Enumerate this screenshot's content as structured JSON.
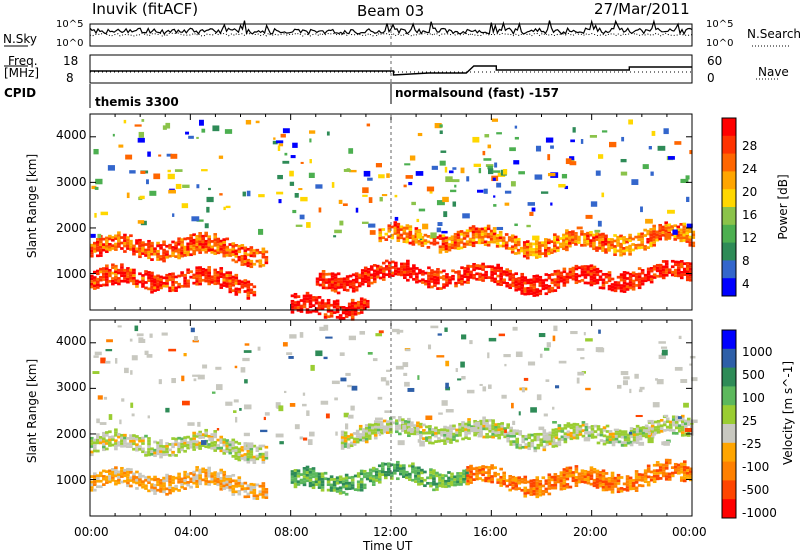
{
  "header": {
    "station": "Inuvik (fitACF)",
    "beam": "Beam 03",
    "date": "27/Mar/2011"
  },
  "panels": {
    "nsky_label": "N.Sky",
    "nsky_ticks": [
      "10^5",
      "10^0"
    ],
    "nsearch_label": "N.Search",
    "nsearch_ticks": [
      "10^5",
      "10^0"
    ],
    "freq_label": "Freq.",
    "freq_unit": "[MHz]",
    "freq_ticks": [
      "18",
      "8"
    ],
    "nave_label": "Nave",
    "nave_ticks": [
      "60",
      "0"
    ],
    "cpid_label": "CPID",
    "cpid_segments": [
      "themis 3300",
      "normalsound (fast) -157"
    ]
  },
  "colors": {
    "background": "#ffffff",
    "power_scale": [
      "#0000ff",
      "#3366cc",
      "#2e8b57",
      "#4caf50",
      "#8bc34a",
      "#ffd700",
      "#ffa500",
      "#ff6600",
      "#ff3300",
      "#ff0000"
    ],
    "velocity_scale": [
      "#0000ff",
      "#2e5fa8",
      "#2e8b57",
      "#5cb85c",
      "#9acd32",
      "#c8c8c0",
      "#ffa500",
      "#ff8000",
      "#ff4500",
      "#ff0000"
    ]
  },
  "chart_data": [
    {
      "type": "heatmap",
      "title": "",
      "xlabel": "Time UT",
      "ylabel": "Slant Range [km]",
      "x_ticks": [
        "00:00",
        "04:00",
        "08:00",
        "12:00",
        "16:00",
        "20:00",
        "00:00"
      ],
      "y_ticks": [
        "1000",
        "2000",
        "3000",
        "4000"
      ],
      "ylim": [
        200,
        4500
      ],
      "colorbar_label": "Power [dB]",
      "colorbar_ticks": [
        "28",
        "24",
        "20",
        "16",
        "12",
        "8",
        "4"
      ],
      "colorbar_range": [
        0,
        30
      ],
      "bands": [
        {
          "t0": 0.0,
          "t1": 6.5,
          "range": 800,
          "value": 26
        },
        {
          "t0": 0.0,
          "t1": 7.0,
          "range": 1500,
          "value": 24
        },
        {
          "t0": 9.0,
          "t1": 24.0,
          "range": 900,
          "value": 28
        },
        {
          "t0": 11.5,
          "t1": 24.0,
          "range": 1700,
          "value": 22
        },
        {
          "t0": 8.0,
          "t1": 11.0,
          "range": 300,
          "value": 28
        }
      ]
    },
    {
      "type": "heatmap",
      "title": "",
      "xlabel": "Time UT",
      "ylabel": "Slant Range [km]",
      "x_ticks": [
        "00:00",
        "04:00",
        "08:00",
        "12:00",
        "16:00",
        "20:00",
        "00:00"
      ],
      "y_ticks": [
        "1000",
        "2000",
        "3000",
        "4000"
      ],
      "ylim": [
        200,
        4500
      ],
      "colorbar_label": "Velocity [m s^-1]",
      "colorbar_ticks": [
        "1000",
        "500",
        "100",
        "25",
        "-25",
        "-100",
        "-500",
        "-1000"
      ],
      "colorbar_range": [
        -1000,
        1000
      ],
      "bands": [
        {
          "t0": 0.0,
          "t1": 7.0,
          "range": 900,
          "value": -300
        },
        {
          "t0": 0.0,
          "t1": 7.0,
          "range": 1700,
          "value": 0
        },
        {
          "t0": 8.0,
          "t1": 15.0,
          "range": 1000,
          "value": 300
        },
        {
          "t0": 15.0,
          "t1": 24.0,
          "range": 1000,
          "value": -500
        },
        {
          "t0": 10.0,
          "t1": 24.0,
          "range": 2000,
          "value": 0
        }
      ]
    }
  ]
}
